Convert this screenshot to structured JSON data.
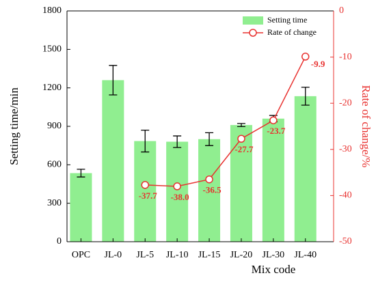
{
  "chart_data": {
    "type": "bar",
    "x_label": "Mix code",
    "y_label": "Setting time/min",
    "y2_label": "Rate of change/%",
    "categories": [
      "OPC",
      "JL-0",
      "JL-5",
      "JL-10",
      "JL-15",
      "JL-20",
      "JL-30",
      "JL-40"
    ],
    "series": [
      {
        "name": "Setting time",
        "color": "#90ee90",
        "values": [
          535,
          1260,
          785,
          780,
          800,
          910,
          960,
          1135
        ],
        "errors": [
          30,
          115,
          85,
          45,
          50,
          12,
          25,
          70
        ]
      },
      {
        "name": "Rate of change",
        "color": "#e8312f",
        "axis": "y2",
        "values": [
          null,
          null,
          -37.7,
          -38.0,
          -36.5,
          -27.7,
          -23.7,
          -9.9
        ],
        "value_labels": [
          null,
          null,
          "-37.7",
          "-38.0",
          "-36.5",
          "-27.7",
          "-23.7",
          "-9.9"
        ]
      }
    ],
    "ylim": [
      0,
      1800
    ],
    "yticks": [
      0,
      300,
      600,
      900,
      1200,
      1500,
      1800
    ],
    "y2lim": [
      -50,
      0
    ],
    "y2ticks": [
      -50,
      -40,
      -30,
      -20,
      -10,
      0
    ],
    "legend": "upper right"
  }
}
